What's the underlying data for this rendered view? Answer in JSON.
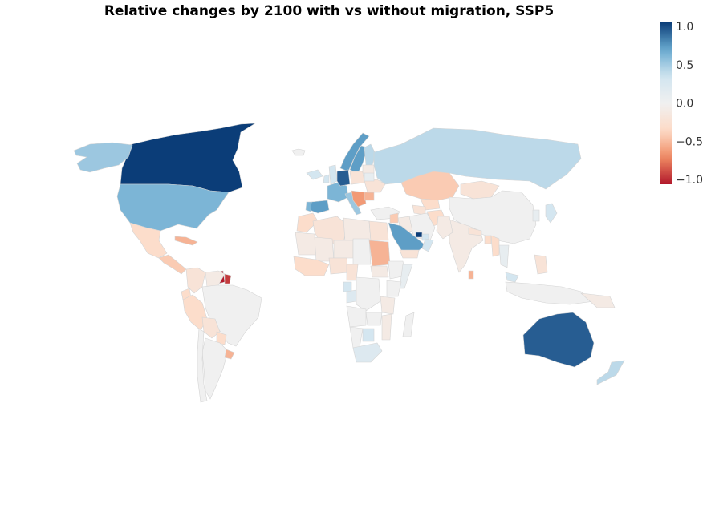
{
  "title": "Relative changes by 2100 with vs without migration, SSP5",
  "colorscale": {
    "min": -1.0,
    "max": 1.0,
    "ticks": [
      {
        "value": 1.0,
        "label": "1.0"
      },
      {
        "value": 0.5,
        "label": "0.5"
      },
      {
        "value": 0.0,
        "label": "0.0"
      },
      {
        "value": -0.5,
        "label": "−0.5"
      },
      {
        "value": -1.0,
        "label": "−1.0"
      }
    ],
    "stops": [
      "#b2182b",
      "#ef8a62",
      "#fddbc7",
      "#f0f0f0",
      "#d1e5f0",
      "#67a9cf",
      "#0b3d78"
    ]
  },
  "regions": [
    {
      "name": "Canada",
      "value": 1.0
    },
    {
      "name": "Alaska",
      "value": 0.5
    },
    {
      "name": "United States",
      "value": 0.6
    },
    {
      "name": "Greenland",
      "value": 0.0
    },
    {
      "name": "Mexico",
      "value": -0.3
    },
    {
      "name": "Central America",
      "value": -0.4
    },
    {
      "name": "Caribbean",
      "value": -0.5
    },
    {
      "name": "Guyana",
      "value": -1.0
    },
    {
      "name": "Suriname",
      "value": -0.9
    },
    {
      "name": "Colombia",
      "value": -0.2
    },
    {
      "name": "Venezuela",
      "value": -0.1
    },
    {
      "name": "Ecuador",
      "value": -0.3
    },
    {
      "name": "Peru",
      "value": -0.3
    },
    {
      "name": "Brazil",
      "value": 0.0
    },
    {
      "name": "Bolivia",
      "value": -0.2
    },
    {
      "name": "Paraguay",
      "value": -0.3
    },
    {
      "name": "Argentina",
      "value": 0.0
    },
    {
      "name": "Chile",
      "value": 0.0
    },
    {
      "name": "Uruguay",
      "value": -0.5
    },
    {
      "name": "Iceland",
      "value": 0.3
    },
    {
      "name": "Norway",
      "value": 0.7
    },
    {
      "name": "Sweden",
      "value": 0.7
    },
    {
      "name": "Finland",
      "value": 0.4
    },
    {
      "name": "United Kingdom",
      "value": 0.3
    },
    {
      "name": "Ireland",
      "value": 0.3
    },
    {
      "name": "France",
      "value": 0.6
    },
    {
      "name": "Spain",
      "value": 0.7
    },
    {
      "name": "Portugal",
      "value": 0.6
    },
    {
      "name": "Germany",
      "value": 0.9
    },
    {
      "name": "Italy",
      "value": 0.5
    },
    {
      "name": "Poland",
      "value": -0.2
    },
    {
      "name": "Balkans",
      "value": -0.6
    },
    {
      "name": "Romania",
      "value": -0.5
    },
    {
      "name": "Ukraine",
      "value": -0.2
    },
    {
      "name": "Belarus",
      "value": 0.1
    },
    {
      "name": "Baltics",
      "value": -0.1
    },
    {
      "name": "Russia",
      "value": 0.4
    },
    {
      "name": "Kazakhstan",
      "value": -0.4
    },
    {
      "name": "Uzbekistan",
      "value": -0.3
    },
    {
      "name": "Turkmenistan",
      "value": -0.2
    },
    {
      "name": "Afghanistan",
      "value": -0.3
    },
    {
      "name": "Mongolia",
      "value": -0.2
    },
    {
      "name": "China",
      "value": 0.0
    },
    {
      "name": "Korea",
      "value": 0.1
    },
    {
      "name": "Japan",
      "value": 0.3
    },
    {
      "name": "Turkey",
      "value": 0.0
    },
    {
      "name": "Iran",
      "value": 0.0
    },
    {
      "name": "Iraq",
      "value": -0.1
    },
    {
      "name": "Syria",
      "value": -0.4
    },
    {
      "name": "Saudi Arabia",
      "value": 0.7
    },
    {
      "name": "Qatar",
      "value": 1.0
    },
    {
      "name": "United Arab Emirates",
      "value": 0.3
    },
    {
      "name": "Oman",
      "value": 0.3
    },
    {
      "name": "Yemen",
      "value": -0.2
    },
    {
      "name": "India",
      "value": -0.1
    },
    {
      "name": "Pakistan",
      "value": -0.1
    },
    {
      "name": "Nepal",
      "value": -0.2
    },
    {
      "name": "Bangladesh",
      "value": -0.3
    },
    {
      "name": "Myanmar",
      "value": -0.3
    },
    {
      "name": "Thailand",
      "value": 0.1
    },
    {
      "name": "Malaysia",
      "value": 0.3
    },
    {
      "name": "Indonesia",
      "value": 0.0
    },
    {
      "name": "Philippines",
      "value": -0.2
    },
    {
      "name": "Papua New Guinea",
      "value": -0.1
    },
    {
      "name": "Sri Lanka",
      "value": -0.5
    },
    {
      "name": "Morocco",
      "value": -0.3
    },
    {
      "name": "Algeria",
      "value": -0.2
    },
    {
      "name": "Libya",
      "value": -0.1
    },
    {
      "name": "Egypt",
      "value": -0.2
    },
    {
      "name": "Mauritania",
      "value": -0.1
    },
    {
      "name": "Mali",
      "value": -0.1
    },
    {
      "name": "Niger",
      "value": -0.1
    },
    {
      "name": "Chad",
      "value": 0.0
    },
    {
      "name": "Sudan",
      "value": -0.5
    },
    {
      "name": "South Sudan",
      "value": -0.1
    },
    {
      "name": "Ethiopia",
      "value": 0.0
    },
    {
      "name": "Somalia",
      "value": 0.1
    },
    {
      "name": "West Africa",
      "value": -0.3
    },
    {
      "name": "Nigeria",
      "value": -0.2
    },
    {
      "name": "Cameroon",
      "value": -0.2
    },
    {
      "name": "Equatorial Guinea",
      "value": 0.3
    },
    {
      "name": "Gabon",
      "value": 0.2
    },
    {
      "name": "DR Congo",
      "value": 0.0
    },
    {
      "name": "Kenya",
      "value": 0.0
    },
    {
      "name": "Tanzania",
      "value": -0.1
    },
    {
      "name": "Angola",
      "value": 0.0
    },
    {
      "name": "Zambia",
      "value": 0.0
    },
    {
      "name": "Mozambique",
      "value": -0.1
    },
    {
      "name": "Botswana",
      "value": 0.3
    },
    {
      "name": "Namibia",
      "value": 0.0
    },
    {
      "name": "South Africa",
      "value": 0.2
    },
    {
      "name": "Madagascar",
      "value": 0.0
    },
    {
      "name": "Australia",
      "value": 0.9
    },
    {
      "name": "New Zealand",
      "value": 0.4
    }
  ]
}
